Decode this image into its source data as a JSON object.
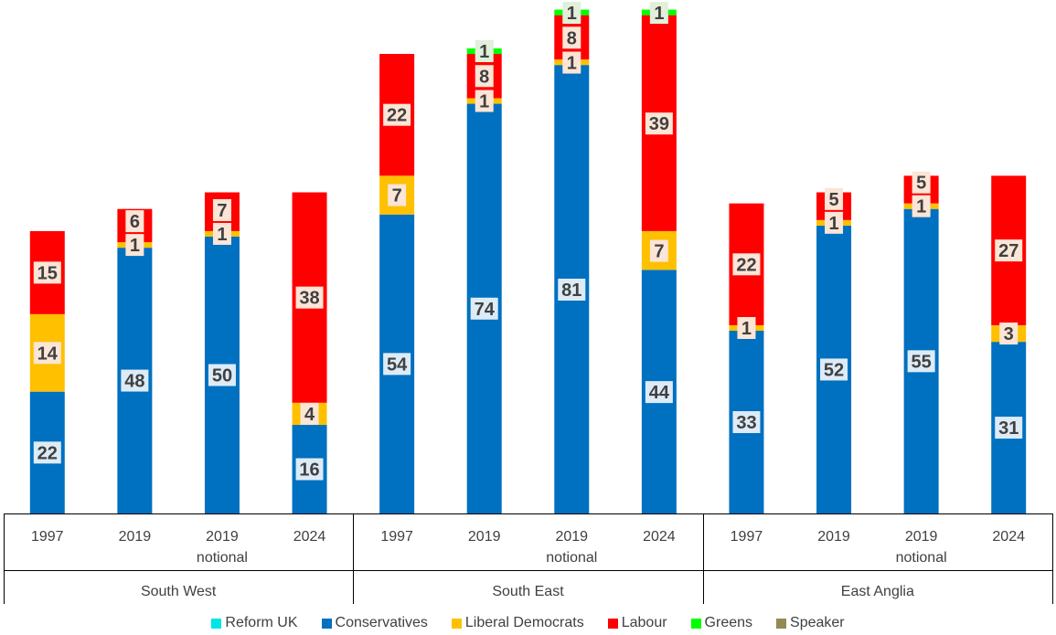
{
  "chart_data": {
    "type": "stacked-bar",
    "ylim": [
      0,
      90
    ],
    "series_names": [
      "Reform UK",
      "Conservatives",
      "Liberal Democrats",
      "Labour",
      "Greens",
      "Speaker"
    ],
    "colors": {
      "Reform UK": "#00e5e5",
      "Conservatives": "#0070c0",
      "Liberal Democrats": "#ffc000",
      "Labour": "#ff0000",
      "Greens": "#00ff00",
      "Speaker": "#948a54"
    },
    "groups": [
      {
        "region": "South West",
        "bars": [
          {
            "label": [
              "1997"
            ],
            "values": {
              "Conservatives": 22,
              "Liberal Democrats": 14,
              "Labour": 15
            }
          },
          {
            "label": [
              "2019"
            ],
            "values": {
              "Conservatives": 48,
              "Liberal Democrats": 1,
              "Labour": 6
            }
          },
          {
            "label": [
              "2019",
              "notional"
            ],
            "values": {
              "Conservatives": 50,
              "Liberal Democrats": 1,
              "Labour": 7
            }
          },
          {
            "label": [
              "2024"
            ],
            "values": {
              "Conservatives": 16,
              "Liberal Democrats": 4,
              "Labour": 38
            }
          }
        ]
      },
      {
        "region": "South East",
        "bars": [
          {
            "label": [
              "1997"
            ],
            "values": {
              "Conservatives": 54,
              "Liberal Democrats": 7,
              "Labour": 22
            }
          },
          {
            "label": [
              "2019"
            ],
            "values": {
              "Conservatives": 74,
              "Liberal Democrats": 1,
              "Labour": 8,
              "Greens": 1
            }
          },
          {
            "label": [
              "2019",
              "notional"
            ],
            "values": {
              "Conservatives": 81,
              "Liberal Democrats": 1,
              "Labour": 8,
              "Greens": 1
            }
          },
          {
            "label": [
              "2024"
            ],
            "values": {
              "Conservatives": 44,
              "Liberal Democrats": 7,
              "Labour": 39,
              "Greens": 1
            }
          }
        ]
      },
      {
        "region": "East Anglia",
        "bars": [
          {
            "label": [
              "1997"
            ],
            "values": {
              "Conservatives": 33,
              "Liberal Democrats": 1,
              "Labour": 22
            }
          },
          {
            "label": [
              "2019"
            ],
            "values": {
              "Conservatives": 52,
              "Liberal Democrats": 1,
              "Labour": 5
            }
          },
          {
            "label": [
              "2019",
              "notional"
            ],
            "values": {
              "Conservatives": 55,
              "Liberal Democrats": 1,
              "Labour": 5
            }
          },
          {
            "label": [
              "2024"
            ],
            "values": {
              "Conservatives": 31,
              "Liberal Democrats": 3,
              "Labour": 27
            }
          }
        ]
      }
    ]
  }
}
